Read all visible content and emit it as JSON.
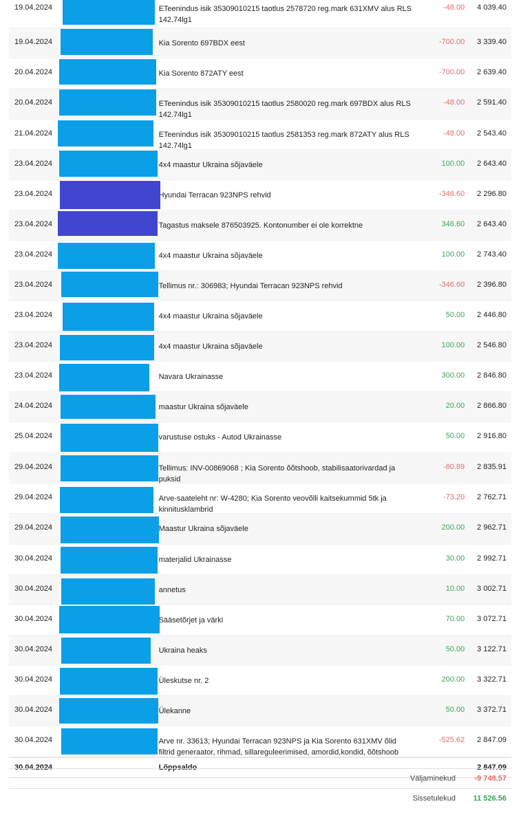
{
  "transactions": [
    {
      "date": "19.04.2024",
      "desc": "ETeenindus isik 35309010215 taotlus 2578720 reg.mark 631XMV alus RLS 142.74lg1",
      "amount": "-48.00",
      "balance": "4 039.40",
      "sign": "neg",
      "color": "#0b9fe8"
    },
    {
      "date": "19.04.2024",
      "desc": "Kia Sorento 697BDX eest",
      "amount": "-700.00",
      "balance": "3 339.40",
      "sign": "neg",
      "color": "#0b9fe8"
    },
    {
      "date": "20.04.2024",
      "desc": "Kia Sorento 872ATY eest",
      "amount": "-700.00",
      "balance": "2 639.40",
      "sign": "neg",
      "color": "#0b9fe8"
    },
    {
      "date": "20.04.2024",
      "desc": "ETeenindus isik 35309010215 taotlus 2580020 reg.mark 697BDX alus RLS 142.74lg1",
      "amount": "-48.00",
      "balance": "2 591.40",
      "sign": "neg",
      "color": "#0b9fe8"
    },
    {
      "date": "21.04.2024",
      "desc": "ETeenindus isik 35309010215 taotlus 2581353 reg.mark 872ATY alus RLS 142.74lg1",
      "amount": "-48.00",
      "balance": "2 543.40",
      "sign": "neg",
      "color": "#0b9fe8"
    },
    {
      "date": "23.04.2024",
      "desc": "4x4 maastur Ukraina sõjaväele",
      "amount": "100.00",
      "balance": "2 643.40",
      "sign": "pos",
      "color": "#0b9fe8"
    },
    {
      "date": "23.04.2024",
      "desc": "Hyundai Terracan 923NPS rehvid",
      "amount": "-346.60",
      "balance": "2 296.80",
      "sign": "neg",
      "color": "#4046cf"
    },
    {
      "date": "23.04.2024",
      "desc": "Tagastus maksele 876503925. Kontonumber ei ole korrektne",
      "amount": "346.60",
      "balance": "2 643.40",
      "sign": "pos",
      "color": "#4046cf"
    },
    {
      "date": "23.04.2024",
      "desc": "4x4 maastur Ukraina sõjaväele",
      "amount": "100.00",
      "balance": "2 743.40",
      "sign": "pos",
      "color": "#0b9fe8"
    },
    {
      "date": "23.04.2024",
      "desc": "Tellimus nr.: 306983; Hyundai Terracan 923NPS rehvid",
      "amount": "-346.60",
      "balance": "2 396.80",
      "sign": "neg",
      "color": "#0b9fe8"
    },
    {
      "date": "23.04.2024",
      "desc": "4x4 maastur Ukraina sõjaväele",
      "amount": "50.00",
      "balance": "2 446.80",
      "sign": "pos",
      "color": "#0b9fe8"
    },
    {
      "date": "23.04.2024",
      "desc": "4x4 maastur Ukraina sõjaväele",
      "amount": "100.00",
      "balance": "2 546.80",
      "sign": "pos",
      "color": "#0b9fe8"
    },
    {
      "date": "23.04.2024",
      "desc": "Navara Ukrainasse",
      "amount": "300.00",
      "balance": "2 846.80",
      "sign": "pos",
      "color": "#0b9fe8"
    },
    {
      "date": "24.04.2024",
      "desc": "maastur Ukraina sõjaväele",
      "amount": "20.00",
      "balance": "2 866.80",
      "sign": "pos",
      "color": "#0b9fe8"
    },
    {
      "date": "25.04.2024",
      "desc": "varustuse ostuks - Autod Ukrainasse",
      "amount": "50.00",
      "balance": "2 916.80",
      "sign": "pos",
      "color": "#0b9fe8"
    },
    {
      "date": "29.04.2024",
      "desc": "Tellimus: INV-00869068 ; Kia Sorento õõtshoob, stabilisaatorivardad ja puksid",
      "amount": "-80.89",
      "balance": "2 835.91",
      "sign": "neg",
      "color": "#0b9fe8"
    },
    {
      "date": "29.04.2024",
      "desc": "Arve-saateleht nr: W-4280; Kia Sorento veovõlli kaitsekummid 5tk ja kinnitusklambrid",
      "amount": "-73.20",
      "balance": "2 762.71",
      "sign": "neg",
      "color": "#0b9fe8"
    },
    {
      "date": "29.04.2024",
      "desc": "Maastur Ukraina sõjaväele",
      "amount": "200.00",
      "balance": "2 962.71",
      "sign": "pos",
      "color": "#0b9fe8"
    },
    {
      "date": "30.04.2024",
      "desc": "materjalid Ukrainasse",
      "amount": "30.00",
      "balance": "2 992.71",
      "sign": "pos",
      "color": "#0b9fe8"
    },
    {
      "date": "30.04.2024",
      "desc": "annetus",
      "amount": "10.00",
      "balance": "3 002.71",
      "sign": "pos",
      "color": "#0b9fe8"
    },
    {
      "date": "30.04.2024",
      "desc": "Sääsetõrjet ja värki",
      "amount": "70.00",
      "balance": "3 072.71",
      "sign": "pos",
      "color": "#0b9fe8"
    },
    {
      "date": "30.04.2024",
      "desc": "Ukraina heaks",
      "amount": "50.00",
      "balance": "3 122.71",
      "sign": "pos",
      "color": "#0b9fe8"
    },
    {
      "date": "30.04.2024",
      "desc": "Üleskutse nr. 2",
      "amount": "200.00",
      "balance": "3 322.71",
      "sign": "pos",
      "color": "#0b9fe8"
    },
    {
      "date": "30.04.2024",
      "desc": "Ülekanne",
      "amount": "50.00",
      "balance": "3 372.71",
      "sign": "pos",
      "color": "#0b9fe8"
    },
    {
      "date": "30.04.2024",
      "desc": "Arve nr. 33613; Hyundai Terracan 923NPS ja Kia Sorento 631XMV õlid filtrid generaator, rihmad, sillareguleerimised, amordid,kondid, õõtshoob",
      "amount": "-525.62",
      "balance": "2 847.09",
      "sign": "neg",
      "color": "#0b9fe8"
    }
  ],
  "final": {
    "date": "30.04.2024",
    "label": "Lõppsaldo",
    "balance": "2 847.09"
  },
  "summary": {
    "outgoing_label": "Väljaminekud",
    "outgoing_value": "-9 748.57",
    "incoming_label": "Sissetulekud",
    "incoming_value": "11 526.56"
  },
  "colors": {
    "negative": "#e36a6a",
    "positive": "#3aa555",
    "redaction_blue": "#0b9fe8",
    "redaction_indigo": "#4046cf"
  }
}
